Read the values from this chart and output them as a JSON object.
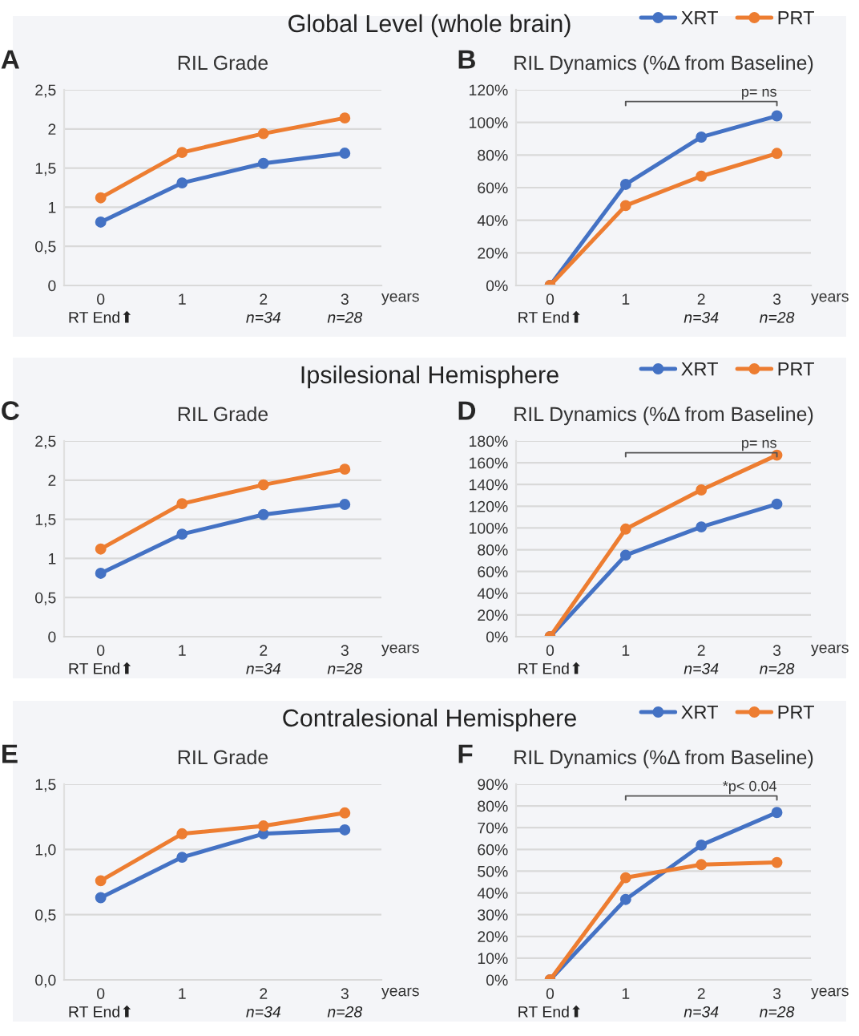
{
  "chart_data": [
    {
      "type": "line",
      "title": "Global Level (whole brain)",
      "subtitle": "RIL Grade",
      "xlabel": "years",
      "categories": [
        "0",
        "1",
        "2",
        "3"
      ],
      "marker": "circle",
      "grid": "y",
      "ylim": [
        0,
        2.5
      ],
      "yticks": [
        0,
        {
          "value": 0.5,
          "label": "0,5"
        },
        1,
        {
          "value": 1.5,
          "label": "1,5"
        },
        2,
        {
          "value": 2.5,
          "label": "2,5"
        }
      ],
      "series": [
        {
          "color": "#4472c4",
          "values": [
            0.81,
            1.31,
            1.56,
            1.69
          ]
        },
        {
          "color": "#ed7d31",
          "values": [
            1.12,
            1.7,
            1.94,
            2.14
          ]
        }
      ],
      "annotations": [
        "A",
        "RT End⬆",
        "n=34",
        "n=28"
      ]
    },
    {
      "type": "line",
      "title": "RIL Dynamics (%Δ from Baseline)",
      "xlabel": "years",
      "categories": [
        "0",
        "1",
        "2",
        "3"
      ],
      "marker": "circle",
      "grid": "y",
      "legend": "top right",
      "ylim": [
        0,
        120
      ],
      "yticks": [
        {
          "value": 0,
          "label": "0%"
        },
        {
          "value": 20,
          "label": "20%"
        },
        {
          "value": 40,
          "label": "40%"
        },
        {
          "value": 60,
          "label": "60%"
        },
        {
          "value": 80,
          "label": "80%"
        },
        {
          "value": 100,
          "label": "100%"
        },
        {
          "value": 120,
          "label": "120%"
        }
      ],
      "series": [
        {
          "name": "XRT",
          "color": "#4472c4",
          "values": [
            0,
            62,
            91,
            104
          ]
        },
        {
          "name": "PRT",
          "color": "#ed7d31",
          "values": [
            0,
            49,
            67,
            81
          ]
        }
      ],
      "annotations": [
        "B",
        "RT End⬆",
        "n=34",
        "n=28",
        "p= ns"
      ]
    },
    {
      "type": "line",
      "title": "Ipsilesional Hemisphere",
      "subtitle": "RIL Grade",
      "xlabel": "years",
      "categories": [
        "0",
        "1",
        "2",
        "3"
      ],
      "marker": "circle",
      "grid": "y",
      "ylim": [
        0,
        2.5
      ],
      "yticks": [
        0,
        {
          "value": 0.5,
          "label": "0,5"
        },
        1,
        {
          "value": 1.5,
          "label": "1,5"
        },
        2,
        {
          "value": 2.5,
          "label": "2,5"
        }
      ],
      "series": [
        {
          "color": "#4472c4",
          "values": [
            0.81,
            1.31,
            1.56,
            1.69
          ]
        },
        {
          "color": "#ed7d31",
          "values": [
            1.12,
            1.7,
            1.94,
            2.14
          ]
        }
      ],
      "annotations": [
        "C",
        "RT End⬆",
        "n=34",
        "n=28"
      ]
    },
    {
      "type": "line",
      "title": "RIL Dynamics (%Δ from Baseline)",
      "xlabel": "years",
      "categories": [
        "0",
        "1",
        "2",
        "3"
      ],
      "marker": "circle",
      "grid": "y",
      "legend": "top right",
      "ylim": [
        0,
        180
      ],
      "yticks": [
        {
          "value": 0,
          "label": "0%"
        },
        {
          "value": 20,
          "label": "20%"
        },
        {
          "value": 40,
          "label": "40%"
        },
        {
          "value": 60,
          "label": "60%"
        },
        {
          "value": 80,
          "label": "80%"
        },
        {
          "value": 100,
          "label": "100%"
        },
        {
          "value": 120,
          "label": "120%"
        },
        {
          "value": 140,
          "label": "140%"
        },
        {
          "value": 160,
          "label": "160%"
        },
        {
          "value": 180,
          "label": "180%"
        }
      ],
      "series": [
        {
          "name": "XRT",
          "color": "#4472c4",
          "values": [
            0,
            75,
            101,
            122
          ]
        },
        {
          "name": "PRT",
          "color": "#ed7d31",
          "values": [
            0,
            99,
            135,
            167
          ]
        }
      ],
      "annotations": [
        "D",
        "RT End⬆",
        "n=34",
        "n=28",
        "p= ns"
      ]
    },
    {
      "type": "line",
      "title": "Contralesional Hemisphere",
      "subtitle": "RIL Grade",
      "xlabel": "years",
      "categories": [
        "0",
        "1",
        "2",
        "3"
      ],
      "marker": "circle",
      "grid": "y",
      "ylim": [
        0,
        1.5
      ],
      "yticks": [
        {
          "value": 0,
          "label": "0,0"
        },
        {
          "value": 0.5,
          "label": "0,5"
        },
        {
          "value": 1,
          "label": "1,0"
        },
        {
          "value": 1.5,
          "label": "1,5"
        }
      ],
      "series": [
        {
          "color": "#4472c4",
          "values": [
            0.63,
            0.94,
            1.12,
            1.15
          ]
        },
        {
          "color": "#ed7d31",
          "values": [
            0.76,
            1.12,
            1.18,
            1.28
          ]
        }
      ],
      "annotations": [
        "E",
        "RT End⬆",
        "n=34",
        "n=28"
      ]
    },
    {
      "type": "line",
      "title": "RIL Dynamics (%Δ from Baseline)",
      "xlabel": "years",
      "categories": [
        "0",
        "1",
        "2",
        "3"
      ],
      "marker": "circle",
      "grid": "y",
      "legend": "top right",
      "ylim": [
        0,
        90
      ],
      "yticks": [
        {
          "value": 0,
          "label": "0%"
        },
        {
          "value": 10,
          "label": "10%"
        },
        {
          "value": 20,
          "label": "20%"
        },
        {
          "value": 30,
          "label": "30%"
        },
        {
          "value": 40,
          "label": "40%"
        },
        {
          "value": 50,
          "label": "50%"
        },
        {
          "value": 60,
          "label": "60%"
        },
        {
          "value": 70,
          "label": "70%"
        },
        {
          "value": 80,
          "label": "80%"
        },
        {
          "value": 90,
          "label": "90%"
        }
      ],
      "series": [
        {
          "name": "XRT",
          "color": "#4472c4",
          "values": [
            0,
            37,
            62,
            77
          ]
        },
        {
          "name": "PRT",
          "color": "#ed7d31",
          "values": [
            0,
            47,
            53,
            54
          ]
        }
      ],
      "annotations": [
        "F",
        "RT End⬆",
        "n=34",
        "n=28",
        "*p< 0.04"
      ]
    }
  ]
}
